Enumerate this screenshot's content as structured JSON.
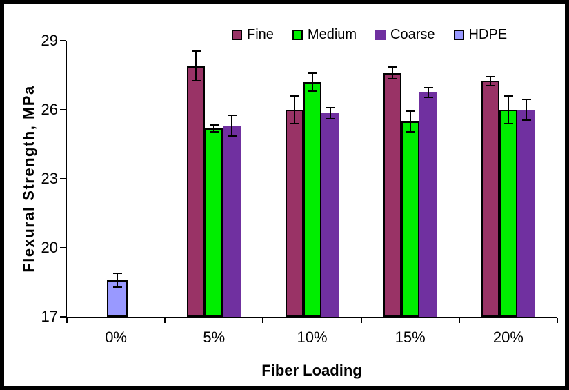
{
  "chart_data": {
    "type": "bar",
    "title": "",
    "xlabel": "Fiber Loading",
    "ylabel": "Flexural Strength, MPa",
    "categories": [
      "0%",
      "5%",
      "10%",
      "15%",
      "20%"
    ],
    "y_ticks": [
      17,
      20,
      23,
      26,
      29
    ],
    "ylim": [
      17,
      29
    ],
    "grid": false,
    "legend_position": "top-center",
    "bar_outline_color": "#000000",
    "series": [
      {
        "name": "Fine",
        "color": "#993366",
        "outlined": true,
        "values": [
          null,
          27.9,
          26.0,
          27.6,
          27.25
        ],
        "error_bars": [
          null,
          0.65,
          0.6,
          0.25,
          0.2
        ]
      },
      {
        "name": "Medium",
        "color": "#00EE00",
        "outlined": true,
        "values": [
          null,
          25.2,
          27.2,
          25.5,
          26.0
        ],
        "error_bars": [
          null,
          0.15,
          0.4,
          0.45,
          0.6
        ]
      },
      {
        "name": "Coarse",
        "color": "#7030A0",
        "outlined": false,
        "values": [
          null,
          25.3,
          25.85,
          26.75,
          26.0
        ],
        "error_bars": [
          null,
          0.45,
          0.25,
          0.2,
          0.45
        ]
      },
      {
        "name": "HDPE",
        "color": "#9999FF",
        "outlined": true,
        "values": [
          18.6,
          null,
          null,
          null,
          null
        ],
        "error_bars": [
          0.3,
          null,
          null,
          null,
          null
        ]
      }
    ]
  }
}
